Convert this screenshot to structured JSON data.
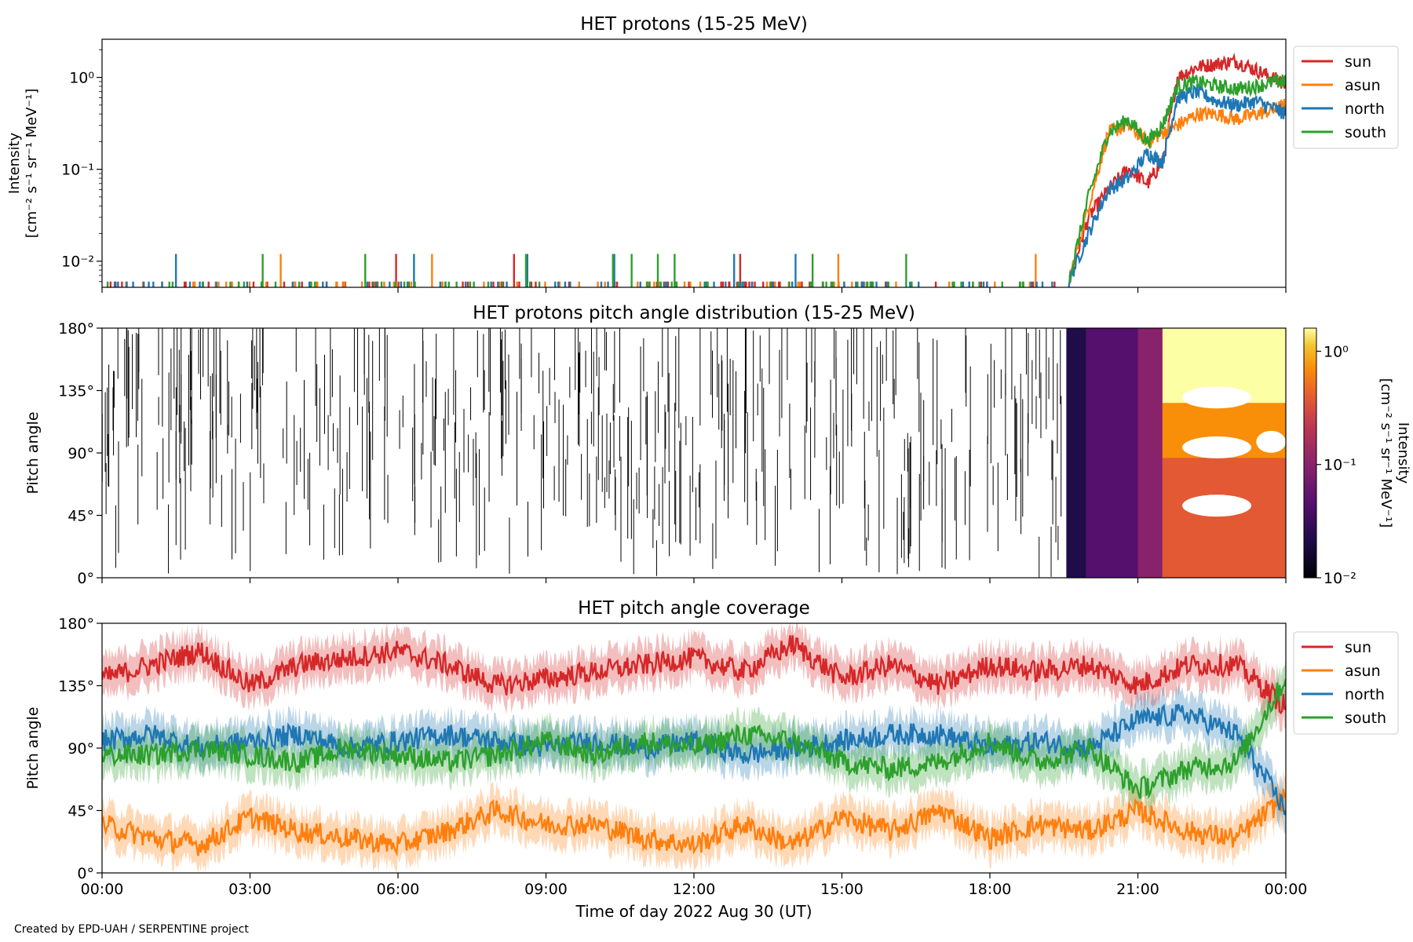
{
  "figure": {
    "credit": "Created by EPD-UAH / SERPENTINE project",
    "xlabel": "Time of day 2022 Aug 30 (UT)",
    "x_ticks": [
      "00:00",
      "03:00",
      "06:00",
      "09:00",
      "12:00",
      "15:00",
      "18:00",
      "21:00",
      "00:00"
    ]
  },
  "chart_data": [
    {
      "type": "line",
      "title": "HET protons (15-25 MeV)",
      "ylabel_line1": "Intensity",
      "ylabel_line2": "[cm⁻² s⁻¹ sr⁻¹ MeV⁻¹]",
      "yscale": "log",
      "ylim": [
        0.0052,
        2.6
      ],
      "y_ticks": [
        "10⁰",
        "10⁻¹",
        "10⁻²"
      ],
      "xlim_hours": [
        0,
        24
      ],
      "legend_position": "outside-right",
      "series": [
        {
          "name": "sun",
          "color": "#d62728",
          "x": [
            19.6,
            20.0,
            20.4,
            20.8,
            21.2,
            21.5,
            21.8,
            22.2,
            22.6,
            23.0,
            23.4,
            23.8,
            24.0
          ],
          "values": [
            0.006,
            0.03,
            0.06,
            0.1,
            0.07,
            0.12,
            1.0,
            1.3,
            1.4,
            1.5,
            1.2,
            0.95,
            0.85
          ]
        },
        {
          "name": "asun",
          "color": "#ff7f0e",
          "x": [
            19.6,
            20.0,
            20.4,
            20.8,
            21.2,
            21.5,
            21.8,
            22.2,
            22.6,
            23.0,
            23.4,
            23.8,
            24.0
          ],
          "values": [
            0.006,
            0.04,
            0.25,
            0.3,
            0.2,
            0.25,
            0.3,
            0.4,
            0.4,
            0.35,
            0.4,
            0.45,
            0.5
          ]
        },
        {
          "name": "north",
          "color": "#1f77b4",
          "x": [
            19.6,
            20.0,
            20.4,
            20.8,
            21.2,
            21.5,
            21.8,
            22.2,
            22.6,
            23.0,
            23.4,
            23.8,
            24.0
          ],
          "values": [
            0.006,
            0.02,
            0.06,
            0.08,
            0.15,
            0.12,
            0.6,
            0.7,
            0.55,
            0.5,
            0.55,
            0.45,
            0.4
          ]
        },
        {
          "name": "south",
          "color": "#2ca02c",
          "x": [
            19.6,
            20.0,
            20.4,
            20.8,
            21.2,
            21.5,
            21.8,
            22.2,
            22.6,
            23.0,
            23.4,
            23.8,
            24.0
          ],
          "values": [
            0.006,
            0.05,
            0.25,
            0.35,
            0.2,
            0.3,
            0.8,
            0.9,
            0.8,
            0.75,
            0.8,
            0.9,
            0.9
          ]
        }
      ]
    },
    {
      "type": "heatmap",
      "title": "HET protons pitch angle distribution (15-25 MeV)",
      "ylabel": "Pitch angle",
      "ylim": [
        0,
        180
      ],
      "y_ticks": [
        "0°",
        "45°",
        "90°",
        "135°",
        "180°"
      ],
      "xlim_hours": [
        0,
        24
      ],
      "colormap": "inferno",
      "colorbar_label_line1": "Intensity",
      "colorbar_label_line2": "[cm⁻² s⁻¹ sr⁻¹ MeV⁻¹]",
      "colorbar_ticks": [
        "10⁰",
        "10⁻¹",
        "10⁻²"
      ],
      "colorbar_range": [
        0.01,
        1.6
      ],
      "blocks": [
        {
          "t": [
            19.55,
            19.95
          ],
          "intensity": 0.012
        },
        {
          "t": [
            19.95,
            21.0
          ],
          "intensity": 0.03
        },
        {
          "t": [
            21.0,
            21.5
          ],
          "intensity": 0.07
        },
        {
          "t": [
            21.5,
            24.0
          ],
          "intensity": 0.3,
          "top_intensity": 1.2
        }
      ]
    },
    {
      "type": "line",
      "title": "HET pitch angle coverage",
      "ylabel": "Pitch angle",
      "ylim": [
        0,
        180
      ],
      "y_ticks": [
        "0°",
        "45°",
        "90°",
        "135°",
        "180°"
      ],
      "xlim_hours": [
        0,
        24
      ],
      "band_halfwidth_deg": 14,
      "legend_position": "outside-right",
      "series": [
        {
          "name": "sun",
          "color": "#d62728",
          "x": [
            0,
            1,
            2,
            3,
            4,
            5,
            6,
            7,
            8,
            9,
            10,
            11,
            12,
            13,
            14,
            15,
            16,
            17,
            18,
            19,
            20,
            21,
            22,
            23,
            24
          ],
          "values": [
            140,
            150,
            160,
            135,
            150,
            155,
            160,
            150,
            135,
            140,
            145,
            150,
            155,
            145,
            165,
            140,
            150,
            135,
            150,
            145,
            150,
            135,
            150,
            150,
            120
          ]
        },
        {
          "name": "asun",
          "color": "#ff7f0e",
          "x": [
            0,
            1,
            2,
            3,
            4,
            5,
            6,
            7,
            8,
            9,
            10,
            11,
            12,
            13,
            14,
            15,
            16,
            17,
            18,
            19,
            20,
            21,
            22,
            23,
            24
          ],
          "values": [
            35,
            25,
            20,
            40,
            30,
            25,
            20,
            30,
            45,
            35,
            35,
            25,
            20,
            35,
            20,
            40,
            30,
            45,
            25,
            35,
            30,
            45,
            30,
            25,
            55
          ]
        },
        {
          "name": "north",
          "color": "#1f77b4",
          "x": [
            0,
            1,
            2,
            3,
            4,
            5,
            6,
            7,
            8,
            9,
            10,
            11,
            12,
            13,
            14,
            15,
            16,
            17,
            18,
            19,
            20,
            21,
            22,
            23,
            24
          ],
          "values": [
            95,
            100,
            90,
            95,
            100,
            90,
            95,
            100,
            95,
            90,
            95,
            90,
            95,
            85,
            90,
            95,
            100,
            100,
            90,
            95,
            90,
            110,
            115,
            100,
            45
          ]
        },
        {
          "name": "south",
          "color": "#2ca02c",
          "x": [
            0,
            1,
            2,
            3,
            4,
            5,
            6,
            7,
            8,
            9,
            10,
            11,
            12,
            13,
            14,
            15,
            16,
            17,
            18,
            19,
            20,
            21,
            22,
            23,
            24
          ],
          "values": [
            85,
            85,
            90,
            85,
            80,
            90,
            85,
            80,
            85,
            95,
            85,
            95,
            90,
            100,
            95,
            80,
            75,
            80,
            95,
            80,
            90,
            60,
            75,
            80,
            140
          ]
        }
      ]
    }
  ]
}
